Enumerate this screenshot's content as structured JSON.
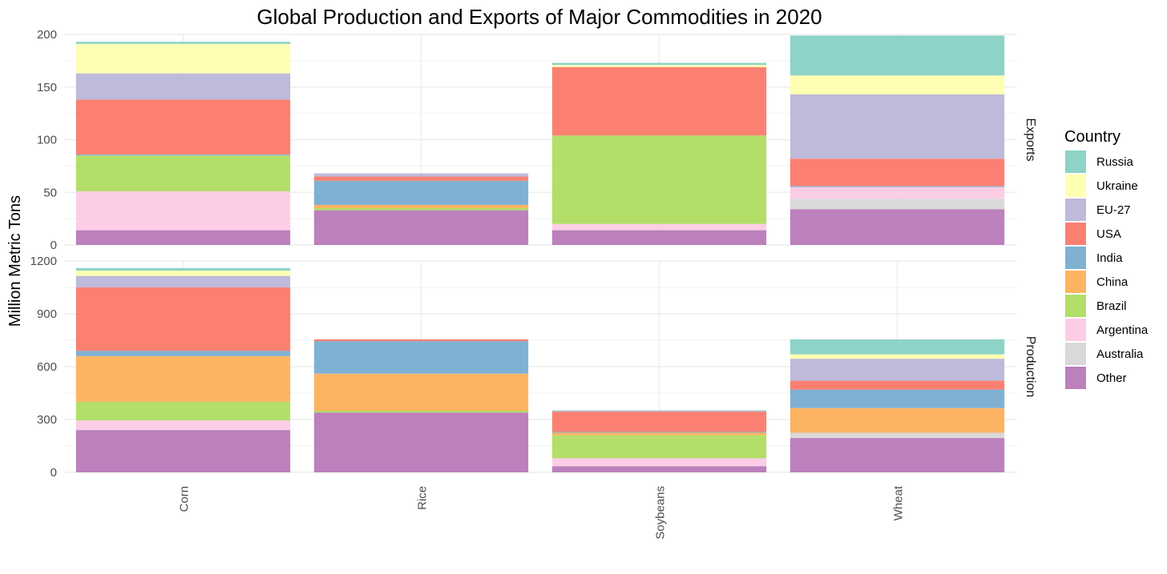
{
  "chart_data": {
    "type": "bar",
    "stacked": true,
    "title": "Global Production and Exports of Major Commodities in 2020",
    "ylabel": "Million Metric Tons",
    "xlabel": "",
    "grid": true,
    "categories": [
      "Corn",
      "Rice",
      "Soybeans",
      "Wheat"
    ],
    "legend": {
      "title": "Country",
      "position": "right",
      "entries": [
        "Russia",
        "Ukraine",
        "EU-27",
        "USA",
        "India",
        "China",
        "Brazil",
        "Argentina",
        "Australia",
        "Other"
      ]
    },
    "colors": {
      "Russia": "#8dd3c7",
      "Ukraine": "#ffffb3",
      "EU-27": "#bebada",
      "USA": "#fb8072",
      "India": "#80b1d3",
      "China": "#fdb462",
      "Brazil": "#b3de69",
      "Argentina": "#fccde5",
      "Australia": "#d9d9d9",
      "Other": "#bc80bd"
    },
    "stack_order_bottom_to_top": [
      "Other",
      "Australia",
      "Argentina",
      "Brazil",
      "China",
      "India",
      "USA",
      "EU-27",
      "Ukraine",
      "Russia"
    ],
    "panels": [
      {
        "facet": "Exports",
        "ylim": [
          0,
          200
        ],
        "yticks": [
          0,
          50,
          100,
          150,
          200
        ],
        "series": [
          {
            "name": "Other",
            "values": [
              14,
              33,
              14,
              34
            ]
          },
          {
            "name": "Australia",
            "values": [
              0,
              0,
              0,
              10
            ]
          },
          {
            "name": "Argentina",
            "values": [
              37,
              0,
              6,
              11
            ]
          },
          {
            "name": "Brazil",
            "values": [
              34,
              2,
              84,
              0
            ]
          },
          {
            "name": "China",
            "values": [
              0,
              3,
              0,
              0
            ]
          },
          {
            "name": "India",
            "values": [
              1,
              23,
              0,
              1
            ]
          },
          {
            "name": "USA",
            "values": [
              52,
              4,
              65,
              26
            ]
          },
          {
            "name": "EU-27",
            "values": [
              25,
              3,
              0,
              61
            ]
          },
          {
            "name": "Ukraine",
            "values": [
              28,
              0,
              2,
              18
            ]
          },
          {
            "name": "Russia",
            "values": [
              2,
              0,
              2,
              38
            ]
          }
        ]
      },
      {
        "facet": "Production",
        "ylim": [
          0,
          1200
        ],
        "yticks": [
          0,
          300,
          600,
          900,
          1200
        ],
        "series": [
          {
            "name": "Other",
            "values": [
              240,
              340,
              35,
              195
            ]
          },
          {
            "name": "Australia",
            "values": [
              0,
              0,
              0,
              30
            ]
          },
          {
            "name": "Argentina",
            "values": [
              55,
              0,
              45,
              0
            ]
          },
          {
            "name": "Brazil",
            "values": [
              105,
              10,
              130,
              0
            ]
          },
          {
            "name": "China",
            "values": [
              260,
              210,
              15,
              140
            ]
          },
          {
            "name": "India",
            "values": [
              30,
              185,
              5,
              105
            ]
          },
          {
            "name": "USA",
            "values": [
              360,
              10,
              115,
              50
            ]
          },
          {
            "name": "EU-27",
            "values": [
              65,
              0,
              3,
              125
            ]
          },
          {
            "name": "Ukraine",
            "values": [
              30,
              0,
              0,
              25
            ]
          },
          {
            "name": "Russia",
            "values": [
              15,
              0,
              4,
              85
            ]
          }
        ]
      }
    ]
  }
}
